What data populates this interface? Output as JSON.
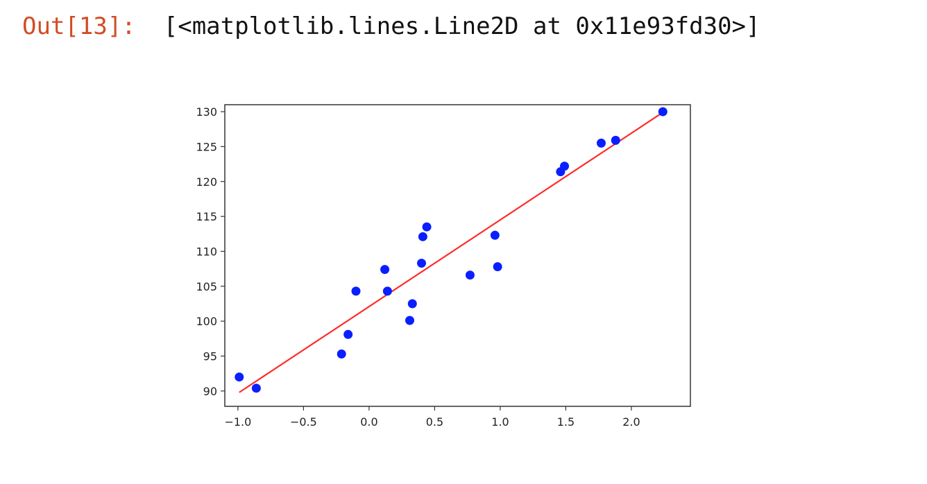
{
  "cell": {
    "prompt": "Out[13]:",
    "output_text": "[<matplotlib.lines.Line2D at 0x11e93fd30>]"
  },
  "colors": {
    "prompt": "#d24d24",
    "points": "#0a1fff",
    "line": "#ff2a2a"
  },
  "chart_data": {
    "type": "scatter",
    "xlim": [
      -1.1,
      2.45
    ],
    "ylim": [
      87.8,
      131
    ],
    "x_ticks": [
      -1.0,
      -0.5,
      0.0,
      0.5,
      1.0,
      1.5,
      2.0
    ],
    "x_tick_labels": [
      "−1.0",
      "−0.5",
      "0.0",
      "0.5",
      "1.0",
      "1.5",
      "2.0"
    ],
    "y_ticks": [
      90,
      95,
      100,
      105,
      110,
      115,
      120,
      125,
      130
    ],
    "y_tick_labels": [
      "90",
      "95",
      "100",
      "105",
      "110",
      "115",
      "120",
      "125",
      "130"
    ],
    "grid": false,
    "series": [
      {
        "kind": "points",
        "color": "#0a1fff",
        "points": [
          [
            -0.99,
            92.0
          ],
          [
            -0.86,
            90.4
          ],
          [
            -0.21,
            95.3
          ],
          [
            -0.16,
            98.1
          ],
          [
            -0.1,
            104.3
          ],
          [
            0.12,
            107.4
          ],
          [
            0.14,
            104.3
          ],
          [
            0.31,
            100.1
          ],
          [
            0.33,
            102.5
          ],
          [
            0.4,
            108.3
          ],
          [
            0.41,
            112.1
          ],
          [
            0.44,
            113.5
          ],
          [
            0.77,
            106.6
          ],
          [
            0.96,
            112.3
          ],
          [
            0.98,
            107.8
          ],
          [
            1.46,
            121.4
          ],
          [
            1.49,
            122.2
          ],
          [
            1.77,
            125.5
          ],
          [
            1.88,
            125.9
          ],
          [
            2.24,
            130.0
          ]
        ]
      },
      {
        "kind": "line",
        "color": "#ff2a2a",
        "x": [
          -0.99,
          2.24
        ],
        "y": [
          89.8,
          129.9
        ]
      }
    ]
  }
}
